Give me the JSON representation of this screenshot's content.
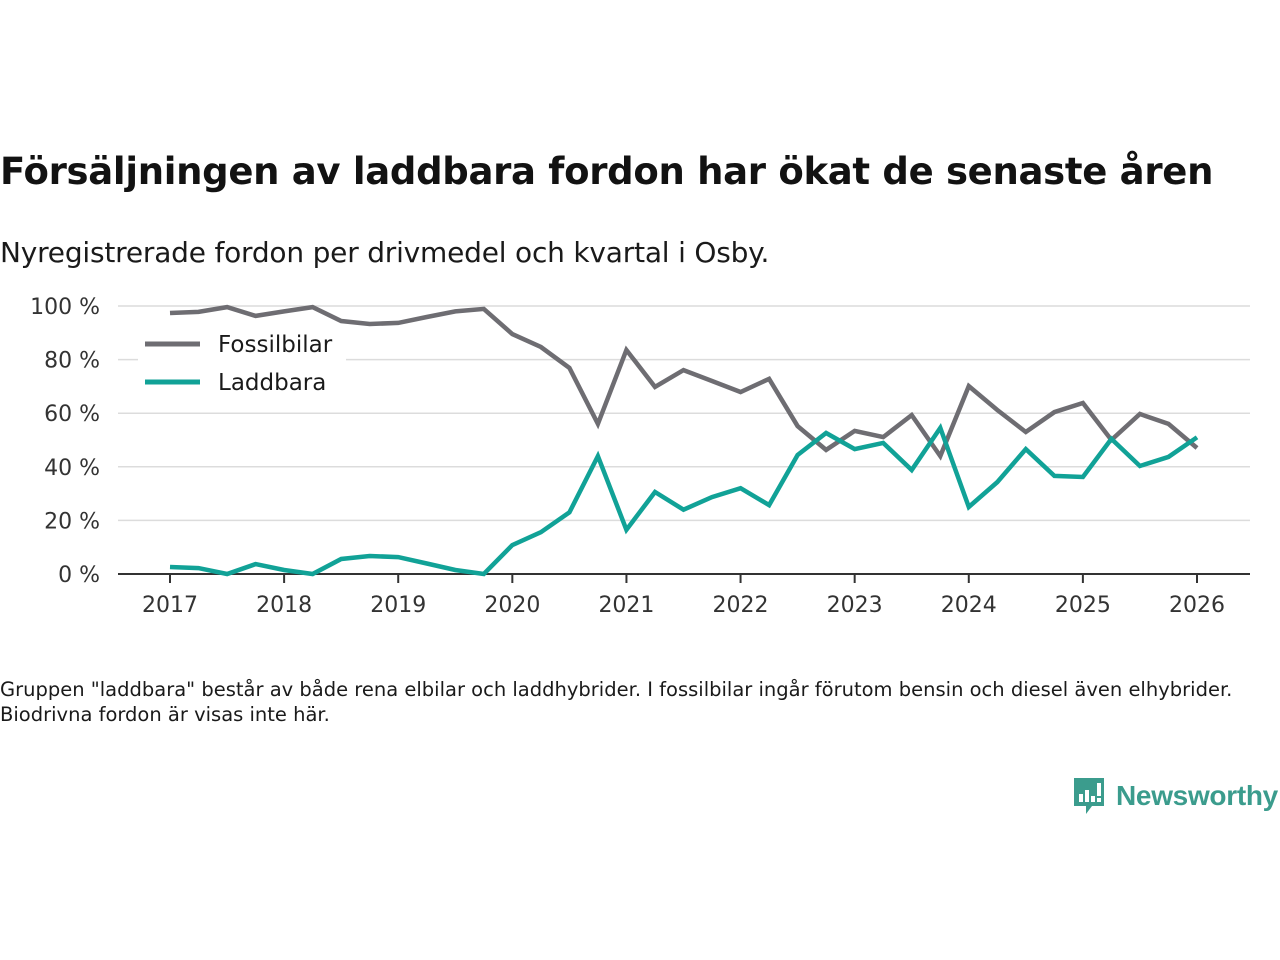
{
  "header": {
    "title": "Försäljningen av laddbara fordon har ökat de senaste åren",
    "subtitle": "Nyregistrerade fordon per drivmedel och kvartal i Osby."
  },
  "footer": {
    "note": "Gruppen \"laddbara\" består av både rena elbilar och laddhybrider. I fossilbilar ingår förutom bensin och diesel även elhybrider. Biodrivna fordon är visas inte här.",
    "brand": "Newsworthy",
    "brand_icon": "newsworthy-logo-icon",
    "brand_color": "#3b9c8d"
  },
  "chart_data": {
    "type": "line",
    "title": "Försäljningen av laddbara fordon har ökat de senaste åren",
    "subtitle": "Nyregistrerade fordon per drivmedel och kvartal i Osby.",
    "xlabel": "",
    "ylabel": "",
    "x_ticks": [
      "2017",
      "2018",
      "2019",
      "2020",
      "2021",
      "2022",
      "2023",
      "2024",
      "2025",
      "2026"
    ],
    "xlim": [
      2017,
      2026
    ],
    "y_ticks": [
      "0 %",
      "20 %",
      "40 %",
      "60 %",
      "80 %",
      "100 %"
    ],
    "ylim": [
      0,
      100
    ],
    "y_unit": "%",
    "grid": "horizontal",
    "legend_position": "top-left",
    "x": [
      2017.0,
      2017.25,
      2017.5,
      2017.75,
      2018.0,
      2018.25,
      2018.5,
      2018.75,
      2019.0,
      2019.25,
      2019.5,
      2019.75,
      2020.0,
      2020.25,
      2020.5,
      2020.75,
      2021.0,
      2021.25,
      2021.5,
      2021.75,
      2022.0,
      2022.25,
      2022.5,
      2022.75,
      2023.0,
      2023.25,
      2023.5,
      2023.75,
      2024.0,
      2024.25,
      2024.5,
      2024.75,
      2025.0,
      2025.25,
      2025.5,
      2025.75,
      2026.0
    ],
    "series": [
      {
        "name": "Fossilbilar",
        "color": "#6e6d72",
        "values": [
          97.4,
          97.8,
          99.6,
          96.3,
          98.0,
          99.6,
          94.4,
          93.3,
          93.7,
          95.9,
          98.0,
          98.9,
          89.5,
          84.7,
          76.9,
          56.0,
          83.6,
          69.8,
          76.1,
          72.0,
          67.9,
          72.8,
          55.2,
          46.3,
          53.4,
          51.1,
          59.3,
          44.0,
          70.1,
          61.2,
          53.0,
          60.4,
          63.8,
          50.0,
          59.7,
          56.0,
          47.0
        ]
      },
      {
        "name": "Laddbara",
        "color": "#11a297",
        "values": [
          2.6,
          2.2,
          0.0,
          3.7,
          1.5,
          0.0,
          5.6,
          6.7,
          6.3,
          3.9,
          1.5,
          0.0,
          10.8,
          15.6,
          23.0,
          44.0,
          16.5,
          30.6,
          24.0,
          28.7,
          32.0,
          25.7,
          44.4,
          52.6,
          46.6,
          48.9,
          38.8,
          54.5,
          25.0,
          34.3,
          46.6,
          36.6,
          36.2,
          50.4,
          40.3,
          43.7,
          51.0
        ]
      }
    ]
  }
}
